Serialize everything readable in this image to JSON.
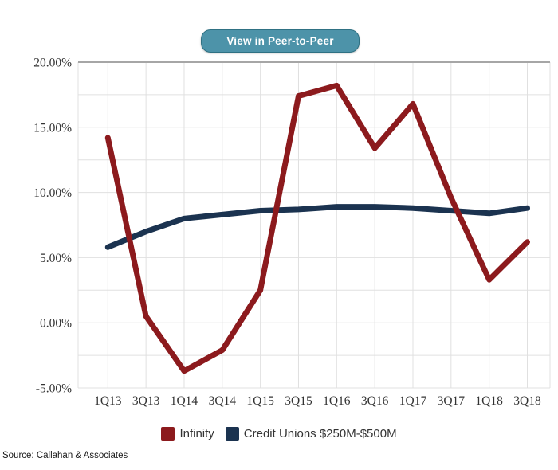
{
  "button": {
    "label": "View in Peer-to-Peer"
  },
  "source": {
    "text": "Source: Callahan & Associates"
  },
  "colors": {
    "infinity_line": "#8c1a1d",
    "credit_unions_line": "#1b3350",
    "button_bg": "#4d93a9",
    "button_border": "#2f7183",
    "grid_minor": "#e0e0e0",
    "grid_top": "#a6a6a6",
    "axis_text": "#333333"
  },
  "chart_data": {
    "type": "line",
    "categories": [
      "1Q13",
      "3Q13",
      "1Q14",
      "3Q14",
      "1Q15",
      "3Q15",
      "1Q16",
      "3Q16",
      "1Q17",
      "3Q17",
      "1Q18",
      "3Q18"
    ],
    "series": [
      {
        "name": "Infinity",
        "color": "#8c1a1d",
        "values": [
          14.2,
          0.5,
          -3.7,
          -2.1,
          2.5,
          17.4,
          18.2,
          13.4,
          16.8,
          9.6,
          3.3,
          6.2
        ]
      },
      {
        "name": "Credit Unions $250M-$500M",
        "color": "#1b3350",
        "values": [
          5.8,
          7.0,
          8.0,
          8.3,
          8.6,
          8.7,
          8.9,
          8.9,
          8.8,
          8.6,
          8.4,
          8.8
        ]
      }
    ],
    "title": "",
    "xlabel": "",
    "ylabel": "",
    "ylim": [
      -5,
      20
    ],
    "y_major_step": 5,
    "y_minor_step": 2.5,
    "y_tick_labels": [
      "20.00%",
      "15.00%",
      "10.00%",
      "5.00%",
      "0.00%",
      "-5.00%"
    ],
    "grid": true,
    "legend_position": "bottom"
  }
}
